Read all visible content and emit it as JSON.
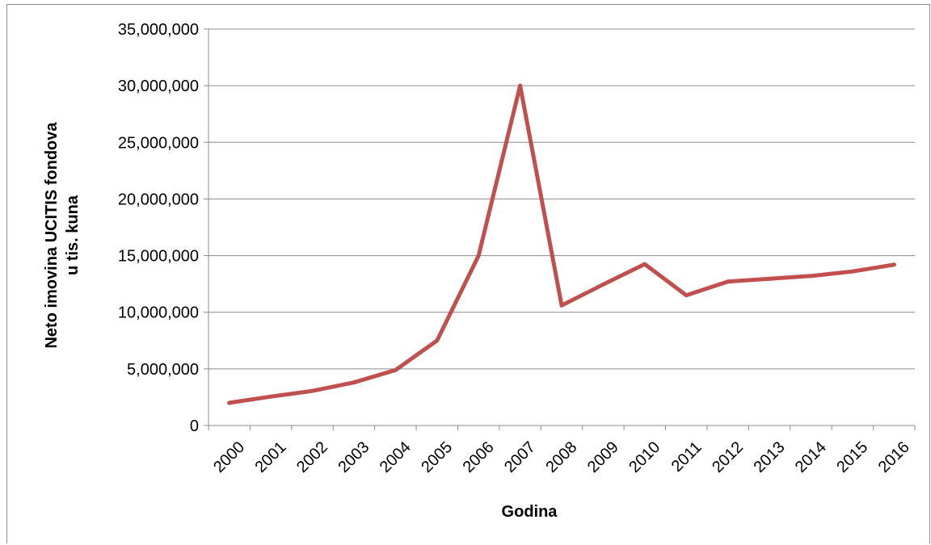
{
  "chart_data": {
    "type": "line",
    "title": "",
    "xlabel": "Godina",
    "ylabel_lines": [
      "Neto imovina UCITIS fondova",
      "u tis. kuna"
    ],
    "ylim": [
      0,
      35000000
    ],
    "y_ticks": [
      0,
      5000000,
      10000000,
      15000000,
      20000000,
      25000000,
      30000000,
      35000000
    ],
    "y_tick_labels": [
      "0",
      "5,000,000",
      "10,000,000",
      "15,000,000",
      "20,000,000",
      "25,000,000",
      "30,000,000",
      "35,000,000"
    ],
    "grid": "horizontal",
    "legend": "none",
    "categories": [
      "2000",
      "2001",
      "2002",
      "2003",
      "2004",
      "2005",
      "2006",
      "2007",
      "2008",
      "2009",
      "2010",
      "2011",
      "2012",
      "2013",
      "2014",
      "2015",
      "2016"
    ],
    "series": [
      {
        "color": "#c0504d",
        "values": [
          2000000,
          2550000,
          3050000,
          3800000,
          4900000,
          7500000,
          15000000,
          30000000,
          10600000,
          12450000,
          14250000,
          11500000,
          12700000,
          12950000,
          13200000,
          13600000,
          14200000
        ]
      }
    ]
  }
}
